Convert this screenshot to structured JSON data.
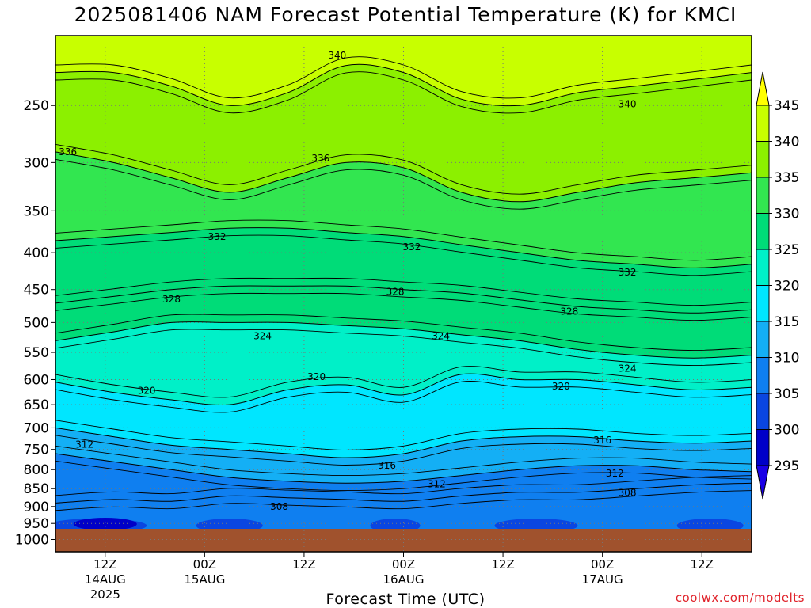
{
  "title": "2025081406 NAM Forecast Potential Temperature (K) for KMCI",
  "credit": "coolwx.com/modelts",
  "chart_data": {
    "type": "heatmap",
    "title": "2025081406 NAM Forecast Potential Temperature (K) for KMCI",
    "xlabel": "Forecast Time (UTC)",
    "ylabel": "",
    "y_scale": "log-pressure",
    "y_ticks": [
      250,
      300,
      350,
      400,
      450,
      500,
      550,
      600,
      650,
      700,
      750,
      800,
      850,
      900,
      950,
      1000
    ],
    "y_range": [
      1000,
      200
    ],
    "x_range_hours": [
      0,
      84
    ],
    "x_ticks": [
      {
        "hour": 6,
        "label": "12Z",
        "sub": "14AUG",
        "sub2": "2025"
      },
      {
        "hour": 18,
        "label": "00Z",
        "sub": "15AUG",
        "sub2": ""
      },
      {
        "hour": 30,
        "label": "12Z",
        "sub": "",
        "sub2": ""
      },
      {
        "hour": 42,
        "label": "00Z",
        "sub": "16AUG",
        "sub2": ""
      },
      {
        "hour": 54,
        "label": "12Z",
        "sub": "",
        "sub2": ""
      },
      {
        "hour": 66,
        "label": "00Z",
        "sub": "17AUG",
        "sub2": ""
      },
      {
        "hour": 78,
        "label": "12Z",
        "sub": "",
        "sub2": ""
      }
    ],
    "grid": "dotted",
    "colorbar": {
      "levels": [
        295,
        300,
        305,
        310,
        315,
        320,
        325,
        330,
        335,
        340,
        345
      ],
      "colors": [
        "#1a00e6",
        "#0000c8",
        "#0a46e1",
        "#0f7ff0",
        "#14aff5",
        "#00e6ff",
        "#00f0c8",
        "#00dc78",
        "#32e650",
        "#8cf000",
        "#c8ff00",
        "#ffff00"
      ]
    },
    "isentropes": [
      {
        "theta": 308,
        "pressure": [
          890,
          880,
          885,
          870,
          875,
          880,
          885,
          870,
          860,
          860,
          850,
          840,
          835
        ]
      },
      {
        "theta": 312,
        "pressure": [
          760,
          780,
          800,
          820,
          830,
          835,
          830,
          815,
          800,
          790,
          790,
          800,
          805
        ]
      },
      {
        "theta": 316,
        "pressure": [
          700,
          720,
          740,
          750,
          760,
          770,
          760,
          730,
          720,
          720,
          730,
          735,
          730
        ]
      },
      {
        "theta": 320,
        "pressure": [
          605,
          625,
          640,
          650,
          620,
          610,
          630,
          590,
          600,
          600,
          610,
          620,
          615
        ]
      },
      {
        "theta": 324,
        "pressure": [
          530,
          515,
          500,
          500,
          500,
          505,
          510,
          520,
          530,
          545,
          555,
          560,
          555
        ]
      },
      {
        "theta": 328,
        "pressure": [
          470,
          460,
          450,
          445,
          445,
          445,
          450,
          455,
          465,
          475,
          480,
          485,
          480
        ]
      },
      {
        "theta": 332,
        "pressure": [
          385,
          380,
          375,
          370,
          370,
          375,
          380,
          390,
          400,
          410,
          415,
          420,
          415
        ]
      },
      {
        "theta": 336,
        "pressure": [
          290,
          300,
          315,
          330,
          315,
          300,
          305,
          330,
          340,
          330,
          320,
          315,
          310
        ]
      },
      {
        "theta": 340,
        "pressure": [
          225,
          225,
          235,
          250,
          240,
          220,
          225,
          245,
          250,
          240,
          235,
          230,
          225
        ]
      }
    ],
    "isentrope_hours": [
      0,
      7,
      14,
      21,
      28,
      35,
      42,
      49,
      56,
      63,
      70,
      77,
      84
    ],
    "contour_labels": [
      {
        "text": "340",
        "hour": 34,
        "pressure": 213
      },
      {
        "text": "340",
        "hour": 69,
        "pressure": 249
      },
      {
        "text": "336",
        "hour": 1.5,
        "pressure": 290
      },
      {
        "text": "336",
        "hour": 32,
        "pressure": 296
      },
      {
        "text": "332",
        "hour": 19.5,
        "pressure": 380
      },
      {
        "text": "332",
        "hour": 43,
        "pressure": 393
      },
      {
        "text": "332",
        "hour": 69,
        "pressure": 426
      },
      {
        "text": "328",
        "hour": 14,
        "pressure": 464
      },
      {
        "text": "328",
        "hour": 41,
        "pressure": 453
      },
      {
        "text": "328",
        "hour": 62,
        "pressure": 483
      },
      {
        "text": "324",
        "hour": 25,
        "pressure": 522
      },
      {
        "text": "324",
        "hour": 46.5,
        "pressure": 522
      },
      {
        "text": "324",
        "hour": 69,
        "pressure": 579
      },
      {
        "text": "320",
        "hour": 11,
        "pressure": 622
      },
      {
        "text": "320",
        "hour": 31.5,
        "pressure": 595
      },
      {
        "text": "320",
        "hour": 61,
        "pressure": 613
      },
      {
        "text": "316",
        "hour": 66,
        "pressure": 728
      },
      {
        "text": "316",
        "hour": 40,
        "pressure": 789
      },
      {
        "text": "312",
        "hour": 3.5,
        "pressure": 738
      },
      {
        "text": "312",
        "hour": 67.5,
        "pressure": 810
      },
      {
        "text": "312",
        "hour": 46,
        "pressure": 838
      },
      {
        "text": "308",
        "hour": 27,
        "pressure": 900
      },
      {
        "text": "308",
        "hour": 69,
        "pressure": 861
      }
    ]
  }
}
